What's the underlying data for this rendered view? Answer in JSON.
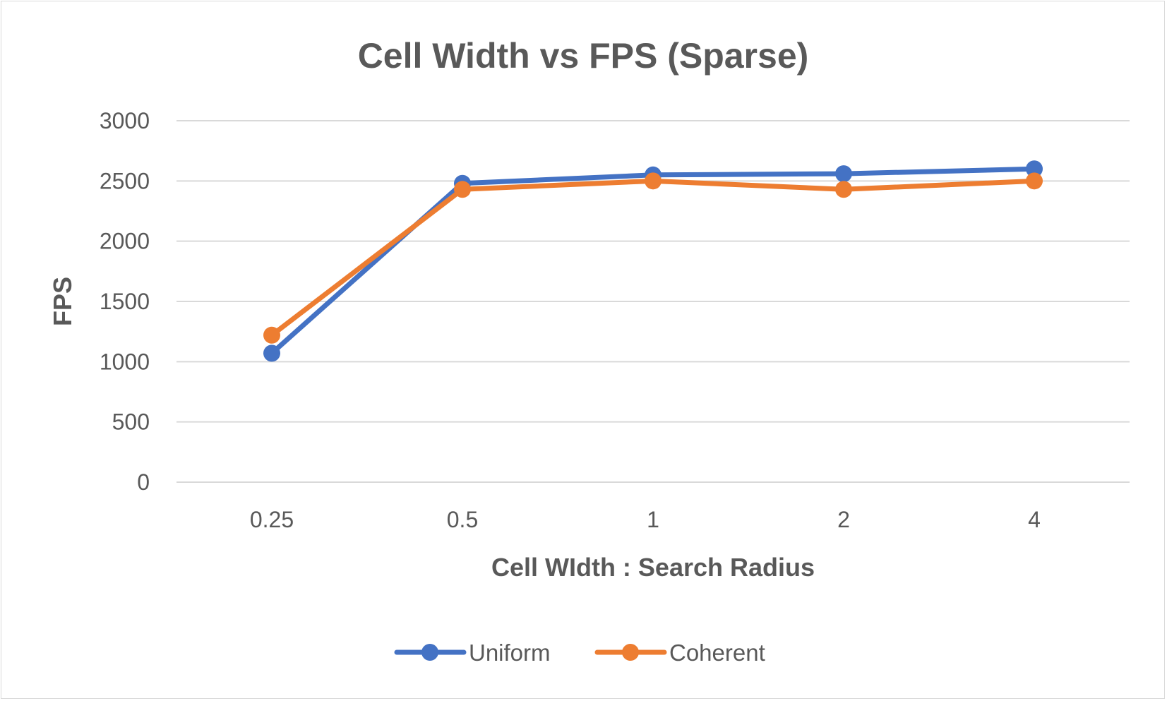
{
  "chart_data": {
    "type": "line",
    "title": "Cell Width vs FPS (Sparse)",
    "xlabel": "Cell WIdth : Search Radius",
    "ylabel": "FPS",
    "categories": [
      "0.25",
      "0.5",
      "1",
      "2",
      "4"
    ],
    "ylim": [
      0,
      3000
    ],
    "yticks": [
      0,
      500,
      1000,
      1500,
      2000,
      2500,
      3000
    ],
    "grid": true,
    "legend": "bottom",
    "series": [
      {
        "name": "Uniform",
        "color": "#4472c4",
        "values": [
          1070,
          2480,
          2550,
          2560,
          2600
        ]
      },
      {
        "name": "Coherent",
        "color": "#ed7d31",
        "values": [
          1220,
          2430,
          2500,
          2430,
          2500
        ]
      }
    ]
  }
}
